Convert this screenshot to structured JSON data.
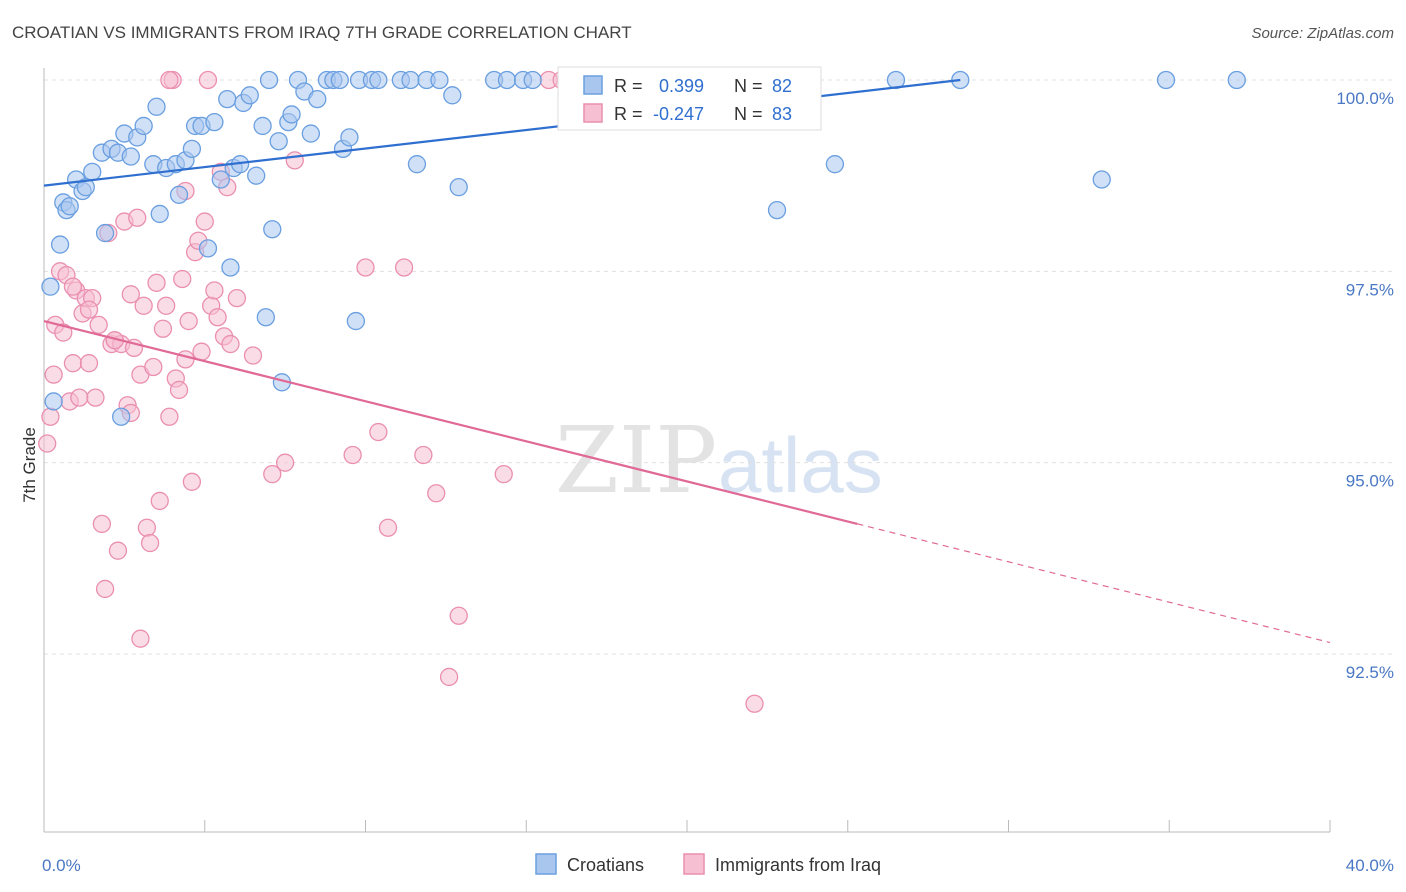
{
  "title": "CROATIAN VS IMMIGRANTS FROM IRAQ 7TH GRADE CORRELATION CHART",
  "source": "Source: ZipAtlas.com",
  "watermark": {
    "zip": "ZIP",
    "atlas": "atlas"
  },
  "colors": {
    "croatians": "#6a9fe0",
    "croatians_fill": "#a9c6ee",
    "croatians_line": "#2f6fcf",
    "iraq": "#ea8fb0",
    "iraq_fill": "#f6bfd2",
    "iraq_line": "#e06a95",
    "tick_text": "#4a78c4",
    "grid": "#e0e0e0"
  },
  "stats": {
    "croatians": {
      "r_label": "R =",
      "r_value": "0.399",
      "n_label": "N =",
      "n_value": "82"
    },
    "iraq": {
      "r_label": "R =",
      "r_value": "-0.247",
      "n_label": "N =",
      "n_value": "83"
    }
  },
  "legend": {
    "croatians": "Croatians",
    "iraq": "Immigrants from Iraq"
  },
  "chart_data": {
    "type": "scatter",
    "title": "CROATIAN VS IMMIGRANTS FROM IRAQ 7TH GRADE CORRELATION CHART",
    "ylabel": "7th Grade",
    "xlim": [
      0,
      40
    ],
    "ylim": [
      90.0,
      100.35
    ],
    "x_tick_labels": [
      {
        "value": 0,
        "label": "0.0%"
      },
      {
        "value": 40,
        "label": "40.0%"
      }
    ],
    "y_tick_labels": [
      {
        "value": 100,
        "label": "100.0%"
      },
      {
        "value": 97.5,
        "label": "97.5%"
      },
      {
        "value": 95,
        "label": "95.0%"
      },
      {
        "value": 92.5,
        "label": "92.5%"
      }
    ],
    "grid": true,
    "legend_position": "bottom-center",
    "series": [
      {
        "name": "Croatians",
        "trend": {
          "x0": 0,
          "y0": 98.62,
          "x1": 28.5,
          "y1": 100.0
        },
        "points": [
          [
            0.2,
            97.3
          ],
          [
            0.3,
            95.8
          ],
          [
            0.5,
            97.85
          ],
          [
            0.6,
            98.4
          ],
          [
            0.7,
            98.3
          ],
          [
            0.8,
            98.35
          ],
          [
            1.0,
            98.7
          ],
          [
            1.2,
            98.55
          ],
          [
            1.3,
            98.6
          ],
          [
            1.5,
            98.8
          ],
          [
            1.8,
            99.05
          ],
          [
            1.9,
            98.0
          ],
          [
            2.1,
            99.1
          ],
          [
            2.3,
            99.05
          ],
          [
            2.5,
            99.3
          ],
          [
            2.7,
            99.0
          ],
          [
            2.9,
            99.25
          ],
          [
            3.1,
            99.4
          ],
          [
            3.4,
            98.9
          ],
          [
            3.5,
            99.65
          ],
          [
            3.6,
            98.25
          ],
          [
            3.8,
            98.85
          ],
          [
            4.1,
            98.9
          ],
          [
            4.2,
            98.5
          ],
          [
            4.4,
            98.95
          ],
          [
            4.6,
            99.1
          ],
          [
            4.7,
            99.4
          ],
          [
            4.9,
            99.4
          ],
          [
            5.1,
            97.8
          ],
          [
            5.3,
            99.45
          ],
          [
            5.5,
            98.7
          ],
          [
            5.7,
            99.75
          ],
          [
            5.8,
            97.55
          ],
          [
            5.9,
            98.85
          ],
          [
            6.1,
            98.9
          ],
          [
            6.2,
            99.7
          ],
          [
            6.4,
            99.8
          ],
          [
            6.6,
            98.75
          ],
          [
            6.8,
            99.4
          ],
          [
            7.0,
            100.0
          ],
          [
            7.1,
            98.05
          ],
          [
            7.3,
            99.2
          ],
          [
            7.6,
            99.45
          ],
          [
            7.7,
            99.55
          ],
          [
            7.9,
            100.0
          ],
          [
            8.1,
            99.85
          ],
          [
            8.3,
            99.3
          ],
          [
            8.5,
            99.75
          ],
          [
            8.8,
            100.0
          ],
          [
            9.0,
            100.0
          ],
          [
            9.2,
            100.0
          ],
          [
            9.3,
            99.1
          ],
          [
            9.5,
            99.25
          ],
          [
            9.8,
            100.0
          ],
          [
            10.2,
            100.0
          ],
          [
            10.4,
            100.0
          ],
          [
            11.1,
            100.0
          ],
          [
            11.4,
            100.0
          ],
          [
            11.6,
            98.9
          ],
          [
            11.9,
            100.0
          ],
          [
            12.3,
            100.0
          ],
          [
            12.7,
            99.8
          ],
          [
            12.9,
            98.6
          ],
          [
            14.0,
            100.0
          ],
          [
            14.4,
            100.0
          ],
          [
            14.9,
            100.0
          ],
          [
            15.2,
            100.0
          ],
          [
            16.8,
            100.0
          ],
          [
            17.2,
            100.0
          ],
          [
            18.5,
            100.0
          ],
          [
            19.0,
            100.0
          ],
          [
            20.3,
            100.0
          ],
          [
            22.8,
            98.3
          ],
          [
            24.6,
            98.9
          ],
          [
            26.5,
            100.0
          ],
          [
            28.5,
            100.0
          ],
          [
            32.9,
            98.7
          ],
          [
            34.9,
            100.0
          ],
          [
            37.1,
            100.0
          ],
          [
            6.9,
            96.9
          ],
          [
            9.7,
            96.85
          ],
          [
            7.4,
            96.05
          ],
          [
            2.4,
            95.6
          ]
        ]
      },
      {
        "name": "Immigrants from Iraq",
        "trend": {
          "x0": 0,
          "y0": 96.85,
          "x1": 25.3,
          "y1": 94.2,
          "dash_to_x": 40,
          "dash_to_y": 92.65
        },
        "points": [
          [
            0.1,
            95.25
          ],
          [
            0.2,
            95.6
          ],
          [
            0.3,
            96.15
          ],
          [
            0.35,
            96.8
          ],
          [
            0.5,
            97.5
          ],
          [
            0.6,
            96.7
          ],
          [
            0.7,
            97.45
          ],
          [
            0.8,
            95.8
          ],
          [
            0.9,
            96.3
          ],
          [
            1.0,
            97.25
          ],
          [
            1.1,
            95.85
          ],
          [
            1.2,
            96.95
          ],
          [
            1.3,
            97.15
          ],
          [
            1.4,
            96.3
          ],
          [
            1.5,
            97.15
          ],
          [
            1.6,
            95.85
          ],
          [
            1.7,
            96.8
          ],
          [
            1.8,
            94.2
          ],
          [
            1.9,
            93.35
          ],
          [
            2.0,
            98.0
          ],
          [
            2.1,
            96.55
          ],
          [
            2.2,
            96.6
          ],
          [
            2.3,
            93.85
          ],
          [
            2.4,
            96.55
          ],
          [
            2.5,
            98.15
          ],
          [
            2.6,
            95.75
          ],
          [
            2.7,
            97.2
          ],
          [
            2.8,
            96.5
          ],
          [
            2.9,
            98.2
          ],
          [
            3.0,
            96.15
          ],
          [
            3.1,
            97.05
          ],
          [
            3.2,
            94.15
          ],
          [
            3.3,
            93.95
          ],
          [
            3.4,
            96.25
          ],
          [
            3.5,
            97.35
          ],
          [
            3.6,
            94.5
          ],
          [
            3.7,
            96.75
          ],
          [
            3.8,
            97.05
          ],
          [
            3.9,
            95.6
          ],
          [
            4.0,
            100.0
          ],
          [
            4.1,
            96.1
          ],
          [
            4.2,
            95.95
          ],
          [
            4.3,
            97.4
          ],
          [
            4.4,
            96.35
          ],
          [
            4.5,
            96.85
          ],
          [
            4.6,
            94.75
          ],
          [
            4.7,
            97.75
          ],
          [
            4.8,
            97.9
          ],
          [
            4.9,
            96.45
          ],
          [
            5.0,
            98.15
          ],
          [
            5.1,
            100.0
          ],
          [
            5.2,
            97.05
          ],
          [
            5.3,
            97.25
          ],
          [
            5.4,
            96.9
          ],
          [
            5.5,
            98.8
          ],
          [
            5.6,
            96.65
          ],
          [
            5.7,
            98.6
          ],
          [
            5.8,
            96.55
          ],
          [
            6.0,
            97.15
          ],
          [
            6.5,
            96.4
          ],
          [
            7.1,
            94.85
          ],
          [
            7.5,
            95.0
          ],
          [
            7.8,
            98.95
          ],
          [
            9.6,
            95.1
          ],
          [
            10.0,
            97.55
          ],
          [
            10.4,
            95.4
          ],
          [
            10.7,
            94.15
          ],
          [
            11.2,
            97.55
          ],
          [
            11.8,
            95.1
          ],
          [
            12.2,
            94.6
          ],
          [
            12.6,
            92.2
          ],
          [
            12.9,
            93.0
          ],
          [
            14.3,
            94.85
          ],
          [
            15.7,
            100.0
          ],
          [
            16.1,
            100.0
          ],
          [
            22.1,
            91.85
          ],
          [
            3.0,
            92.7
          ],
          [
            2.7,
            95.65
          ],
          [
            1.4,
            97.0
          ],
          [
            3.9,
            100.0
          ],
          [
            0.9,
            97.3
          ],
          [
            2.2,
            96.6
          ],
          [
            4.4,
            98.55
          ]
        ]
      }
    ]
  }
}
